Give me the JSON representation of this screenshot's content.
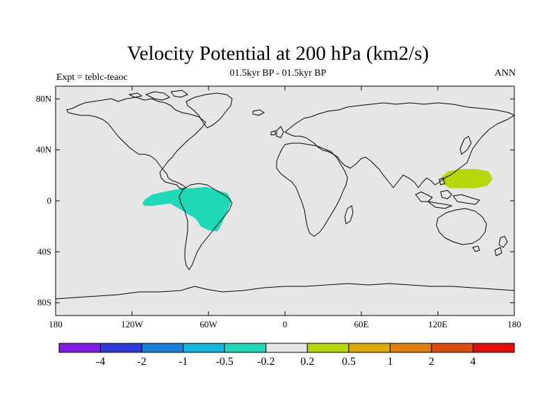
{
  "title": "Velocity Potential at 200 hPa (km2/s)",
  "subtitle": "01.5kyr BP - 01.5kyr BP",
  "left_label": "Expt = teblc-teaoc",
  "right_label": "ANN",
  "map": {
    "projection": "cylindrical-equidistant",
    "lon_range": [
      -180,
      180
    ],
    "lat_range": [
      -90,
      90
    ],
    "background_color": "#e6e6e6",
    "coastline_color": "#000000"
  },
  "axes": {
    "x_ticks": [
      {
        "value": -180,
        "label": "180"
      },
      {
        "value": -120,
        "label": "120W"
      },
      {
        "value": -60,
        "label": "60W"
      },
      {
        "value": 0,
        "label": "0"
      },
      {
        "value": 60,
        "label": "60E"
      },
      {
        "value": 120,
        "label": "120E"
      },
      {
        "value": 180,
        "label": "180"
      }
    ],
    "y_ticks": [
      {
        "value": 80,
        "label": "80N"
      },
      {
        "value": 40,
        "label": "40N"
      },
      {
        "value": 0,
        "label": "0"
      },
      {
        "value": -40,
        "label": "40S"
      },
      {
        "value": -80,
        "label": "80S"
      }
    ]
  },
  "colorbar": {
    "colors": [
      "#7f1ee0",
      "#2f3ad8",
      "#1b7fd8",
      "#16b4e0",
      "#20d8b8",
      "#e6e6e6",
      "#b4d80a",
      "#dcab08",
      "#e07e0f",
      "#dc4d0d",
      "#e01010"
    ],
    "labels": [
      "-4",
      "-2",
      "-1",
      "-0.5",
      "-0.2",
      "0.2",
      "0.5",
      "1",
      "2",
      "4"
    ]
  },
  "chart_data": {
    "type": "heatmap",
    "title": "Velocity Potential at 200 hPa (km2/s)",
    "subtitle": "01.5kyr BP - 01.5kyr BP",
    "units": "km2/s",
    "levels": [
      -4,
      -2,
      -1,
      -0.5,
      -0.2,
      0.2,
      0.5,
      1,
      2,
      4
    ],
    "xlim": [
      -180,
      180
    ],
    "ylim": [
      -90,
      90
    ],
    "anomalies": [
      {
        "name": "South America negative anomaly",
        "range": "-0.5 to -0.2",
        "color": "#20d8b8",
        "outline": [
          [
            -110,
            1
          ],
          [
            -104,
            5
          ],
          [
            -90,
            8
          ],
          [
            -80,
            10
          ],
          [
            -72,
            10
          ],
          [
            -62,
            11
          ],
          [
            -52,
            8
          ],
          [
            -45,
            6
          ],
          [
            -42,
            0
          ],
          [
            -45,
            -8
          ],
          [
            -50,
            -19
          ],
          [
            -53,
            -24
          ],
          [
            -60,
            -23
          ],
          [
            -66,
            -20
          ],
          [
            -70,
            -14
          ],
          [
            -80,
            -8
          ],
          [
            -90,
            -2
          ],
          [
            -97,
            -3
          ],
          [
            -104,
            -4
          ],
          [
            -110,
            -4
          ],
          [
            -112,
            -2
          ]
        ]
      },
      {
        "name": "Western Pacific positive anomaly",
        "range": "0.2 to 0.5",
        "color": "#b4d80a",
        "outline": [
          [
            123,
            19
          ],
          [
            128,
            23
          ],
          [
            138,
            25
          ],
          [
            150,
            25
          ],
          [
            160,
            23
          ],
          [
            163,
            17
          ],
          [
            159,
            12
          ],
          [
            150,
            10
          ],
          [
            140,
            10
          ],
          [
            130,
            10
          ],
          [
            124,
            13
          ]
        ]
      }
    ]
  }
}
